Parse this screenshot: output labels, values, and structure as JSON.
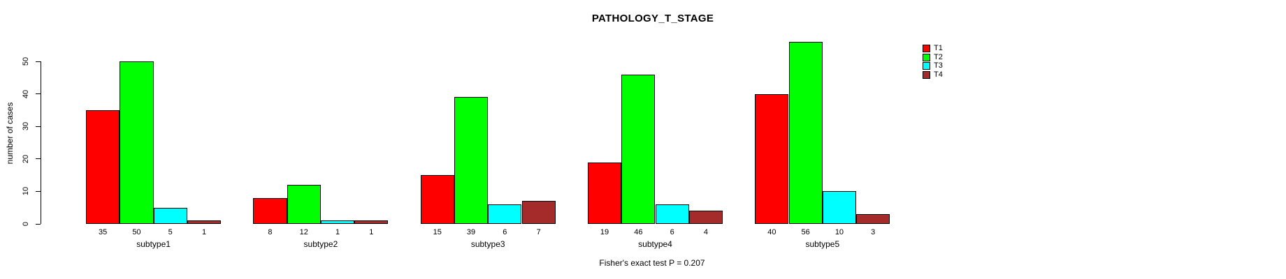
{
  "chart_data": {
    "type": "bar",
    "title": "PATHOLOGY_T_STAGE",
    "ylabel": "number of cases",
    "xlabel": "",
    "categories": [
      "subtype1",
      "subtype2",
      "subtype3",
      "subtype4",
      "subtype5"
    ],
    "series": [
      {
        "name": "T1",
        "color": "#FF0000",
        "values": [
          35,
          8,
          15,
          19,
          40
        ]
      },
      {
        "name": "T2",
        "color": "#00FF00",
        "values": [
          50,
          12,
          39,
          46,
          56
        ]
      },
      {
        "name": "T3",
        "color": "#00FFFF",
        "values": [
          5,
          1,
          6,
          6,
          10
        ]
      },
      {
        "name": "T4",
        "color": "#A52A2A",
        "values": [
          1,
          1,
          7,
          4,
          3
        ]
      }
    ],
    "yticks": [
      0,
      10,
      20,
      30,
      40,
      50
    ],
    "ylim": [
      0,
      56
    ],
    "grid": false,
    "legend_position": "top-right",
    "bar_value_labels": true,
    "annotation": "Fisher's exact test P = 0.207"
  },
  "colors": {
    "background": "#FFFFFF",
    "axis": "#000000",
    "text": "#000000"
  }
}
